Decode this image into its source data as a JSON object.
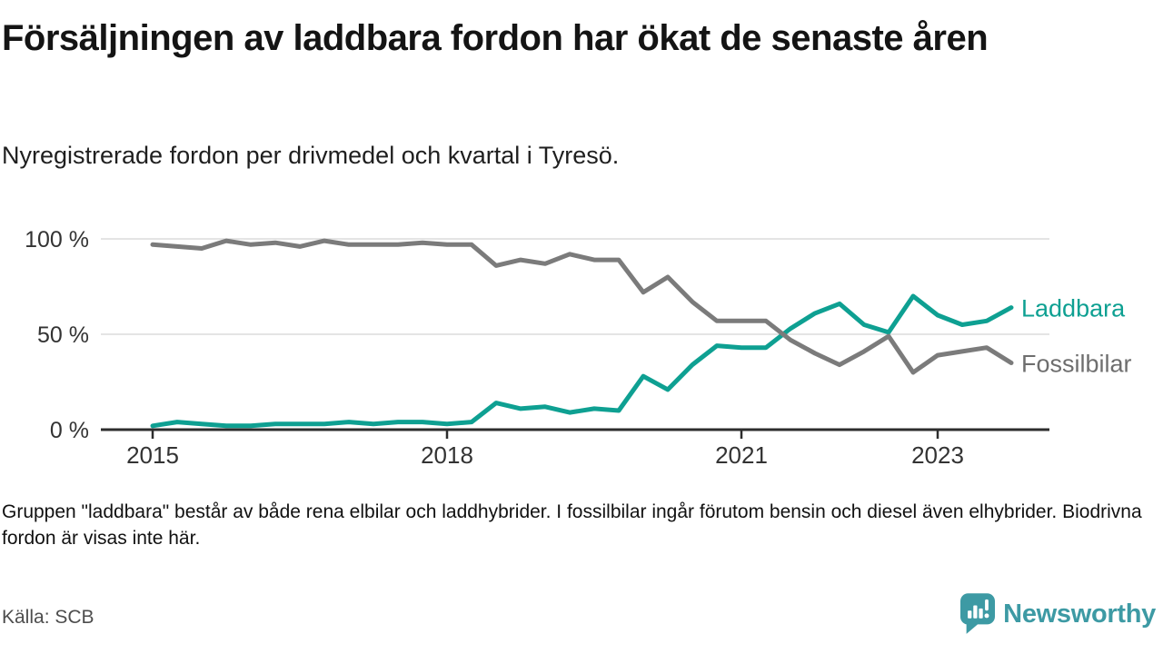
{
  "header": {
    "title": "Försäljningen av laddbara fordon har ökat de senaste åren",
    "subtitle": "Nyregistrerade fordon per drivmedel och kvartal i Tyresö."
  },
  "chart_data": {
    "type": "line",
    "title": "Försäljningen av laddbara fordon har ökat de senaste åren",
    "subtitle": "Nyregistrerade fordon per drivmedel och kvartal i Tyresö.",
    "x_unit": "quarterly share of newly registered vehicles, percent",
    "x": [
      2015.0,
      2015.25,
      2015.5,
      2015.75,
      2016.0,
      2016.25,
      2016.5,
      2016.75,
      2017.0,
      2017.25,
      2017.5,
      2017.75,
      2018.0,
      2018.25,
      2018.5,
      2018.75,
      2019.0,
      2019.25,
      2019.5,
      2019.75,
      2020.0,
      2020.25,
      2020.5,
      2020.75,
      2021.0,
      2021.25,
      2021.5,
      2021.75,
      2022.0,
      2022.25,
      2022.5,
      2022.75,
      2023.0,
      2023.25,
      2023.5,
      2023.75
    ],
    "series": [
      {
        "name": "Laddbara",
        "color": "#0EA092",
        "label_color": "#0EA092",
        "values": [
          2,
          4,
          3,
          2,
          2,
          3,
          3,
          3,
          4,
          3,
          4,
          4,
          3,
          4,
          14,
          11,
          12,
          9,
          11,
          10,
          28,
          21,
          34,
          44,
          43,
          43,
          53,
          61,
          66,
          55,
          51,
          70,
          60,
          55,
          57,
          64
        ]
      },
      {
        "name": "Fossilbilar",
        "color": "#7B7B7B",
        "label_color": "#6E6E6E",
        "values": [
          97,
          96,
          95,
          99,
          97,
          98,
          96,
          99,
          97,
          97,
          97,
          98,
          97,
          97,
          86,
          89,
          87,
          92,
          89,
          89,
          72,
          80,
          67,
          57,
          57,
          57,
          47,
          40,
          34,
          41,
          49,
          30,
          39,
          41,
          43,
          35
        ]
      }
    ],
    "ylim": [
      0,
      100
    ],
    "y_ticks": [
      {
        "value": 100,
        "label": "100 %"
      },
      {
        "value": 50,
        "label": "50 %"
      },
      {
        "value": 0,
        "label": "0 %"
      }
    ],
    "x_ticks": [
      {
        "value": 2015,
        "label": "2015"
      },
      {
        "value": 2018,
        "label": "2018"
      },
      {
        "value": 2021,
        "label": "2021"
      },
      {
        "value": 2023,
        "label": "2023"
      }
    ],
    "grid": true,
    "legend_position": "right-of-line-ends"
  },
  "footer": {
    "note": "Gruppen \"laddbara\" består av både rena elbilar och laddhybrider. I fossilbilar ingår förutom bensin och diesel även elhybrider. Biodrivna fordon är visas inte här.",
    "source": "Källa: SCB",
    "logo_text": "Newsworthy",
    "logo_color": "#3D9AA4"
  }
}
